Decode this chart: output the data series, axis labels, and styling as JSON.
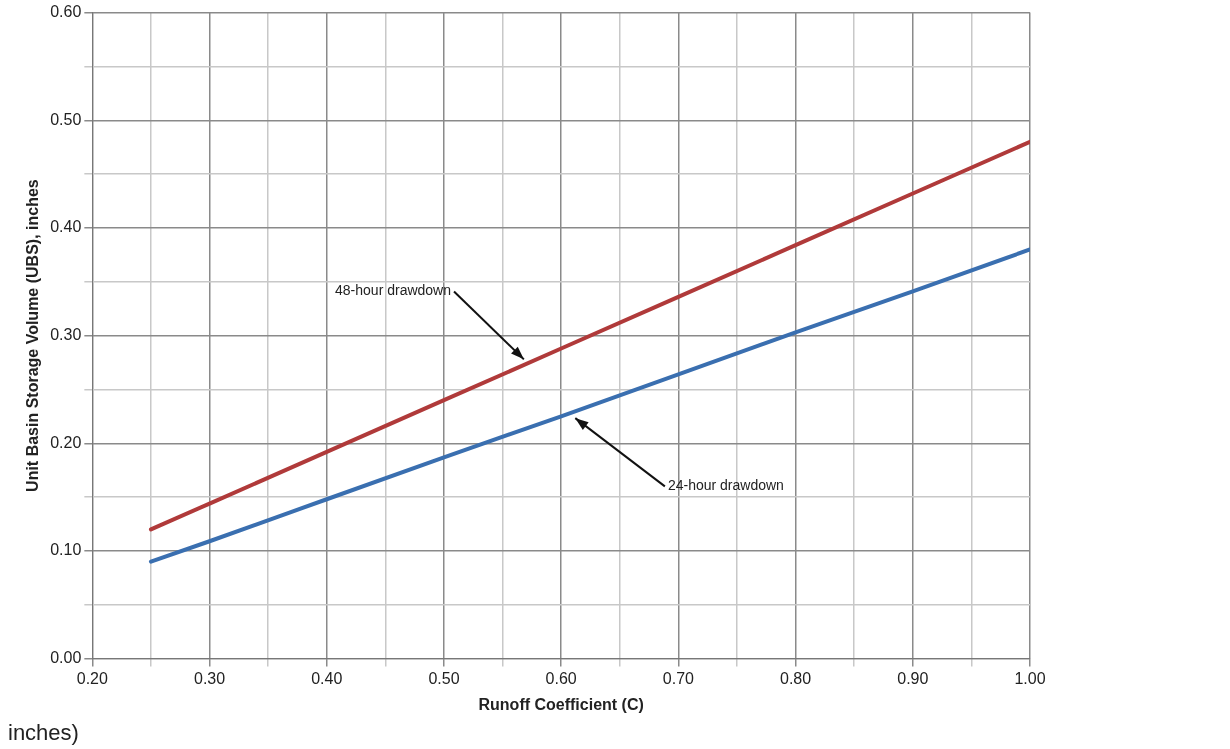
{
  "chart_data": {
    "type": "line",
    "xlabel": "Runoff Coefficient (C)",
    "ylabel": "Unit Basin Storage Volume (UBS), inches",
    "xlim": [
      0.2,
      1.0
    ],
    "xticks": [
      {
        "value": 0.2,
        "label": "0.20"
      },
      {
        "value": 0.25,
        "label": null
      },
      {
        "value": 0.3,
        "label": "0.30"
      },
      {
        "value": 0.35,
        "label": null
      },
      {
        "value": 0.4,
        "label": "0.40"
      },
      {
        "value": 0.45,
        "label": null
      },
      {
        "value": 0.5,
        "label": "0.50"
      },
      {
        "value": 0.55,
        "label": null
      },
      {
        "value": 0.6,
        "label": "0.60"
      },
      {
        "value": 0.65,
        "label": null
      },
      {
        "value": 0.7,
        "label": "0.70"
      },
      {
        "value": 0.75,
        "label": null
      },
      {
        "value": 0.8,
        "label": "0.80"
      },
      {
        "value": 0.85,
        "label": null
      },
      {
        "value": 0.9,
        "label": "0.90"
      },
      {
        "value": 0.95,
        "label": null
      },
      {
        "value": 1.0,
        "label": "1.00"
      }
    ],
    "ylim": [
      0,
      0.6
    ],
    "yticks": [
      {
        "value": 0,
        "label": "0.00"
      },
      {
        "value": 0.05,
        "label": null
      },
      {
        "value": 0.1,
        "label": "0.10"
      },
      {
        "value": 0.15,
        "label": null
      },
      {
        "value": 0.2,
        "label": "0.20"
      },
      {
        "value": 0.25,
        "label": null
      },
      {
        "value": 0.3,
        "label": "0.30"
      },
      {
        "value": 0.35,
        "label": null
      },
      {
        "value": 0.4,
        "label": "0.40"
      },
      {
        "value": 0.45,
        "label": null
      },
      {
        "value": 0.5,
        "label": "0.50"
      },
      {
        "value": 0.55,
        "label": null
      },
      {
        "value": 0.6,
        "label": "0.60"
      }
    ],
    "grid": true,
    "marker": "none",
    "line_style": "solid",
    "legend": false,
    "series": [
      {
        "x": [
          0.25,
          0.3,
          0.4,
          0.5,
          0.6,
          0.7,
          0.8,
          0.9,
          1.0
        ],
        "values": [
          0.12,
          0.144,
          0.192,
          0.24,
          0.288,
          0.336,
          0.384,
          0.432,
          0.48
        ],
        "color": "#b03a3a"
      },
      {
        "x": [
          0.25,
          0.3,
          0.4,
          0.5,
          0.6,
          0.7,
          0.8,
          0.9,
          1.0
        ],
        "values": [
          0.09,
          0.109,
          0.148,
          0.187,
          0.225,
          0.264,
          0.303,
          0.341,
          0.38
        ],
        "color": "#3a6fb0"
      }
    ],
    "annotations": [
      {
        "text": "48-hour drawdown",
        "x": 0.57,
        "y": 0.276
      },
      {
        "text": "24-hour drawdown",
        "x": 0.61,
        "y": 0.225
      },
      "inches)"
    ]
  }
}
